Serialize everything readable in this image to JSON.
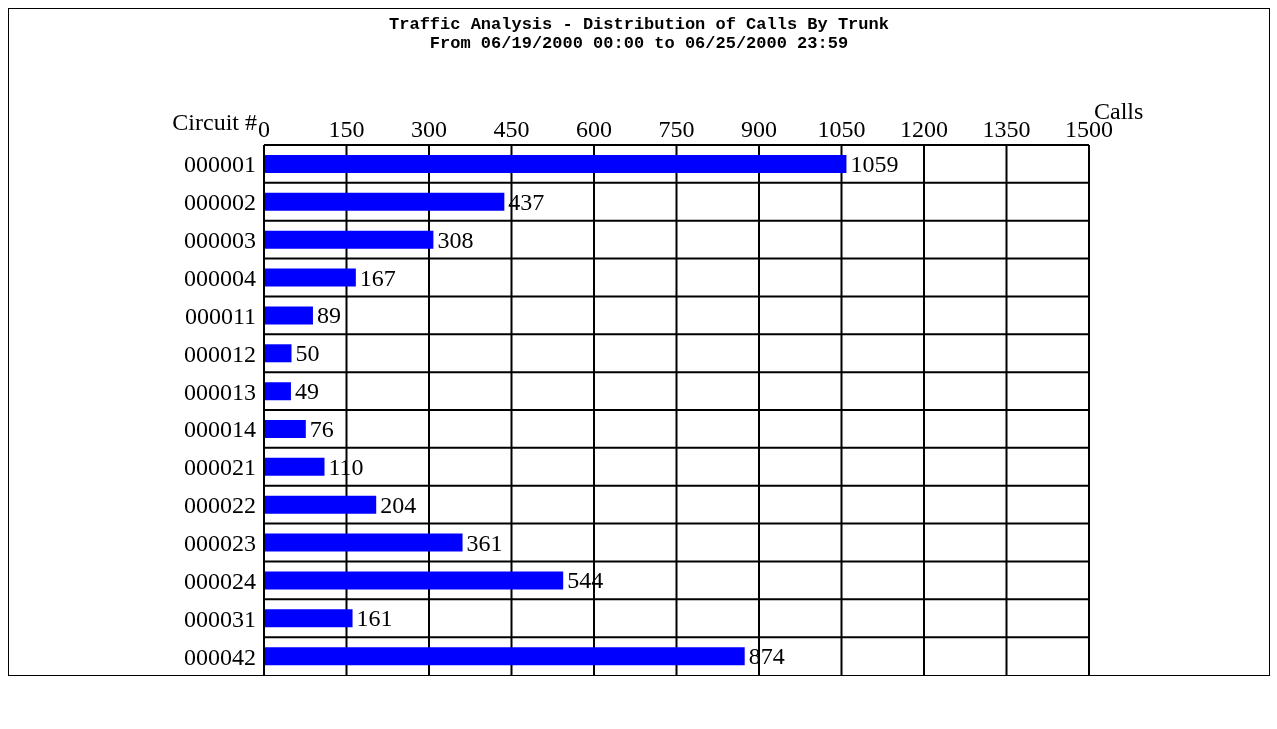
{
  "chart_data": {
    "type": "bar",
    "orientation": "horizontal",
    "title": "Traffic Analysis - Distribution of Calls By Trunk",
    "subtitle": "From 06/19/2000 00:00 to 06/25/2000 23:59",
    "ylabel": "Circuit #",
    "annotations": [
      "Calls"
    ],
    "categories": [
      "000001",
      "000002",
      "000003",
      "000004",
      "000011",
      "000012",
      "000013",
      "000014",
      "000021",
      "000022",
      "000023",
      "000024",
      "000031",
      "000042"
    ],
    "values": [
      1059,
      437,
      308,
      167,
      89,
      50,
      49,
      76,
      110,
      204,
      361,
      544,
      161,
      874
    ],
    "color": "#0000ff",
    "xlim": [
      0,
      1500
    ],
    "xticks": [
      0,
      150,
      300,
      450,
      600,
      750,
      900,
      1050,
      1200,
      1350,
      1500
    ],
    "grid": true,
    "data_labels": true
  }
}
